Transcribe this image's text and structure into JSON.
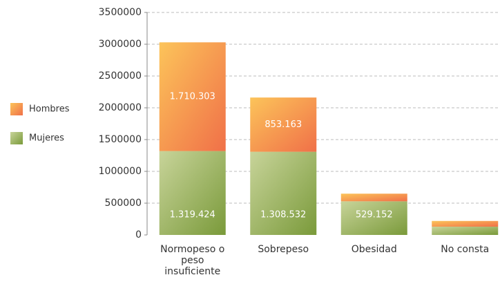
{
  "chart_data": {
    "type": "stacked_bar",
    "categories": [
      "Normopeso o peso insuficiente",
      "Sobrepeso",
      "Obesidad",
      "No consta"
    ],
    "series": [
      {
        "name": "Mujeres",
        "color": "#7a9a3a",
        "values": [
          1319424,
          1308532,
          529152,
          130000
        ],
        "value_labels": [
          "1.319.424",
          "1.308.532",
          "529.152",
          null
        ]
      },
      {
        "name": "Hombres",
        "color": "#f07048",
        "values": [
          1710303,
          853163,
          120000,
          90000
        ],
        "value_labels": [
          "1.710.303",
          "853.163",
          null,
          null
        ]
      }
    ],
    "ylim": [
      0,
      3500000
    ],
    "yticks": [
      0,
      500000,
      1000000,
      1500000,
      2000000,
      2500000,
      3000000,
      3500000
    ],
    "grid": true,
    "legend": "left"
  }
}
